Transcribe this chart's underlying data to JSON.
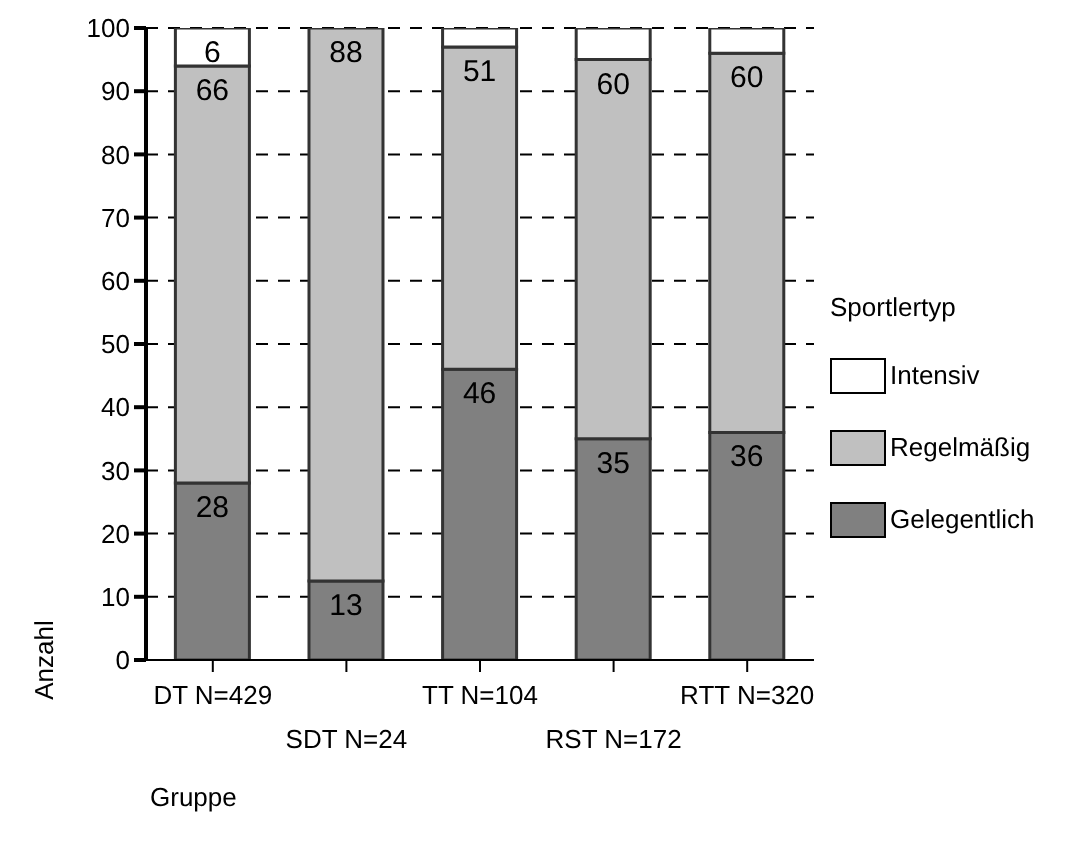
{
  "chart_data": {
    "type": "bar",
    "stacked": true,
    "xlabel": "Gruppe",
    "ylabel": "Anzahl",
    "legend_title": "Sportlertyp",
    "categories": [
      "DT N=429",
      "SDT N=24",
      "TT N=104",
      "RST N=172",
      "RTT N=320"
    ],
    "series": [
      {
        "name": "Gelegentlich",
        "color": "#808080",
        "values": [
          28,
          12.5,
          46,
          35,
          36
        ],
        "value_labels": [
          "28",
          "13",
          "46",
          "35",
          "36"
        ]
      },
      {
        "name": "Regelmäßig",
        "color": "#c0c0c0",
        "values": [
          66,
          87.5,
          51,
          60,
          60
        ],
        "value_labels": [
          "66",
          "88",
          "51",
          "60",
          "60"
        ]
      },
      {
        "name": "Intensiv",
        "color": "#ffffff",
        "values": [
          6,
          null,
          3,
          5,
          4
        ],
        "value_labels": [
          "6",
          null,
          null,
          null,
          null
        ]
      }
    ],
    "ylim": [
      0,
      100
    ],
    "yticks": [
      0,
      10,
      20,
      30,
      40,
      50,
      60,
      70,
      80,
      90,
      100
    ],
    "grid": "y",
    "legend": "right"
  }
}
